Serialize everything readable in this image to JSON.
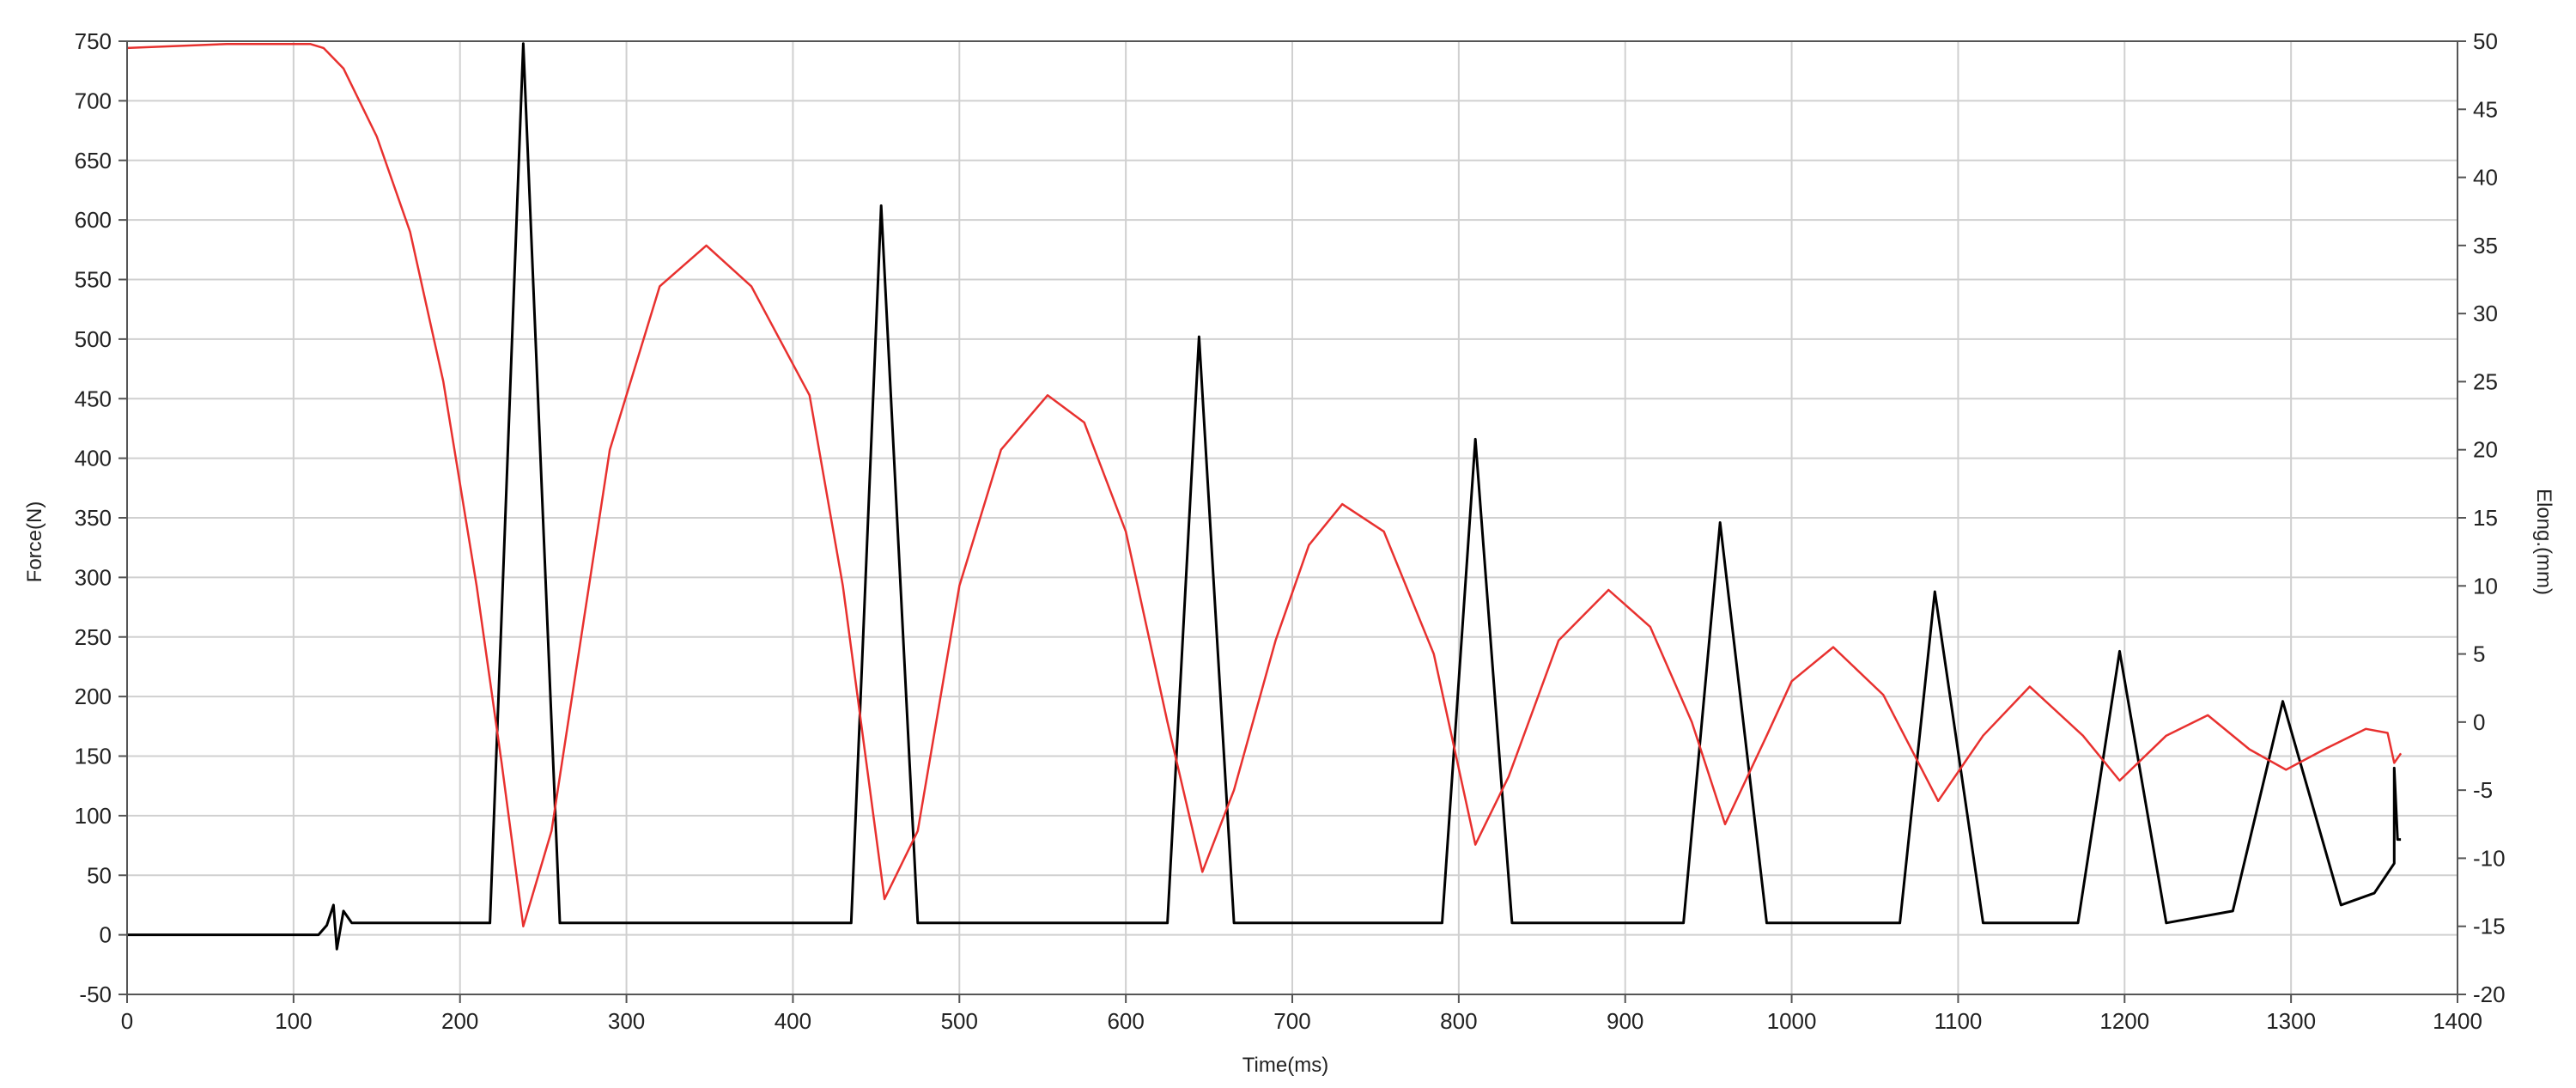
{
  "chart_data": {
    "type": "line",
    "title": "",
    "xlabel": "Time(ms)",
    "ylabel_left": "Force(N)",
    "ylabel_right": "Elong.(mm)",
    "xlim": [
      0,
      1400
    ],
    "ylim_left": [
      -50,
      750
    ],
    "ylim_right": [
      -20,
      50
    ],
    "x_ticks": [
      "0",
      "100",
      "200",
      "300",
      "400",
      "500",
      "600",
      "700",
      "800",
      "900",
      "1000",
      "1100",
      "1200",
      "1300",
      "1400"
    ],
    "y_left_ticks": [
      "-50",
      "0",
      "50",
      "100",
      "150",
      "200",
      "250",
      "300",
      "350",
      "400",
      "450",
      "500",
      "550",
      "600",
      "650",
      "700",
      "750"
    ],
    "y_right_ticks": [
      "-20",
      "-15",
      "-10",
      "-5",
      "0",
      "5",
      "10",
      "15",
      "20",
      "25",
      "30",
      "35",
      "40",
      "45",
      "50"
    ],
    "grid": true,
    "legend": "none",
    "colors": {
      "force": "#000000",
      "elongation": "#e8312f",
      "grid": "#d0d0d0",
      "axis": "#555555"
    },
    "series": [
      {
        "axis": "left",
        "color": "#000000",
        "points": [
          [
            0,
            0
          ],
          [
            115,
            0
          ],
          [
            120,
            8
          ],
          [
            124,
            25
          ],
          [
            126,
            -12
          ],
          [
            130,
            20
          ],
          [
            135,
            10
          ],
          [
            218,
            10
          ],
          [
            238,
            748
          ],
          [
            260,
            10
          ],
          [
            435,
            10
          ],
          [
            453,
            612
          ],
          [
            475,
            10
          ],
          [
            625,
            10
          ],
          [
            644,
            502
          ],
          [
            665,
            10
          ],
          [
            790,
            10
          ],
          [
            810,
            416
          ],
          [
            832,
            10
          ],
          [
            935,
            10
          ],
          [
            957,
            346
          ],
          [
            985,
            10
          ],
          [
            1065,
            10
          ],
          [
            1086,
            288
          ],
          [
            1115,
            10
          ],
          [
            1172,
            10
          ],
          [
            1197,
            238
          ],
          [
            1225,
            10
          ],
          [
            1265,
            20
          ],
          [
            1295,
            196
          ],
          [
            1330,
            25
          ],
          [
            1350,
            35
          ],
          [
            1362,
            60
          ],
          [
            1362,
            140
          ],
          [
            1364,
            80
          ],
          [
            1366,
            80
          ]
        ]
      },
      {
        "axis": "right",
        "color": "#e8312f",
        "points": [
          [
            0,
            49.5
          ],
          [
            60,
            49.8
          ],
          [
            110,
            49.8
          ],
          [
            118,
            49.5
          ],
          [
            130,
            48
          ],
          [
            150,
            43
          ],
          [
            170,
            36
          ],
          [
            190,
            25
          ],
          [
            210,
            10
          ],
          [
            225,
            -3
          ],
          [
            238,
            -15
          ],
          [
            255,
            -8
          ],
          [
            290,
            20
          ],
          [
            320,
            32
          ],
          [
            348,
            35
          ],
          [
            375,
            32
          ],
          [
            410,
            24
          ],
          [
            430,
            10
          ],
          [
            455,
            -13
          ],
          [
            475,
            -8
          ],
          [
            500,
            10
          ],
          [
            525,
            20
          ],
          [
            553,
            24
          ],
          [
            575,
            22
          ],
          [
            600,
            14
          ],
          [
            625,
            0
          ],
          [
            646,
            -11
          ],
          [
            665,
            -5
          ],
          [
            690,
            6
          ],
          [
            710,
            13
          ],
          [
            730,
            16
          ],
          [
            755,
            14
          ],
          [
            785,
            5
          ],
          [
            810,
            -9
          ],
          [
            830,
            -4
          ],
          [
            860,
            6
          ],
          [
            890,
            9.7
          ],
          [
            915,
            7
          ],
          [
            940,
            0
          ],
          [
            960,
            -7.5
          ],
          [
            985,
            -1
          ],
          [
            1000,
            3
          ],
          [
            1025,
            5.5
          ],
          [
            1055,
            2
          ],
          [
            1088,
            -5.8
          ],
          [
            1115,
            -1
          ],
          [
            1143,
            2.6
          ],
          [
            1175,
            -1
          ],
          [
            1197,
            -4.3
          ],
          [
            1225,
            -1
          ],
          [
            1250,
            0.5
          ],
          [
            1275,
            -2
          ],
          [
            1297,
            -3.5
          ],
          [
            1320,
            -2
          ],
          [
            1345,
            -0.5
          ],
          [
            1358,
            -0.8
          ],
          [
            1362,
            -3
          ],
          [
            1366,
            -2.3
          ]
        ]
      }
    ]
  }
}
